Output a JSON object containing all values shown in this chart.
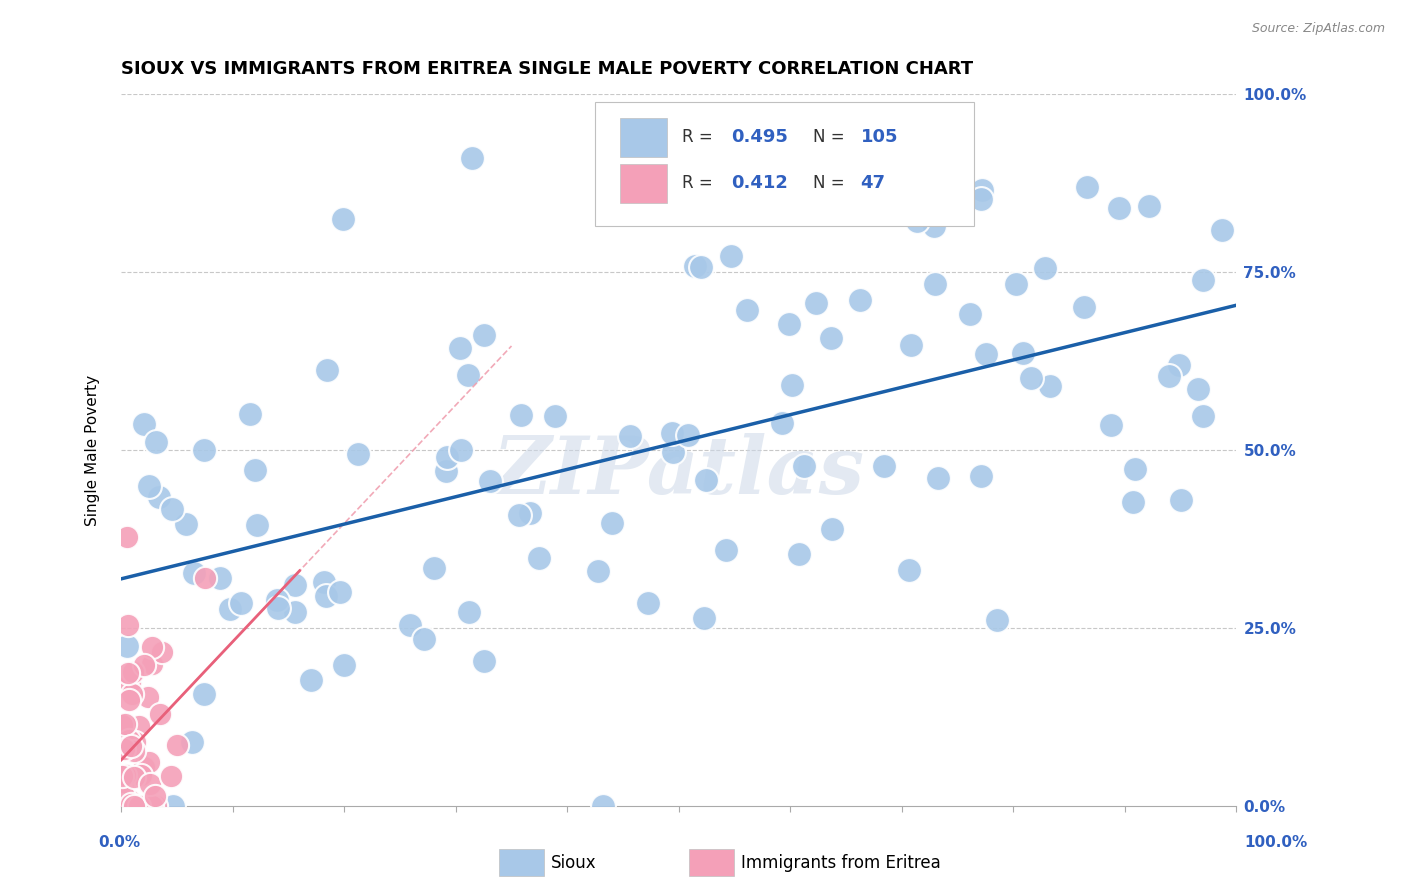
{
  "title": "SIOUX VS IMMIGRANTS FROM ERITREA SINGLE MALE POVERTY CORRELATION CHART",
  "source": "Source: ZipAtlas.com",
  "ylabel": "Single Male Poverty",
  "legend_label1": "Sioux",
  "legend_label2": "Immigrants from Eritrea",
  "R1": 0.495,
  "N1": 105,
  "R2": 0.412,
  "N2": 47,
  "sioux_color": "#a8c8e8",
  "eritrea_color": "#f4a0b8",
  "sioux_line_color": "#1a5fa8",
  "eritrea_line_color": "#e8607a",
  "eritrea_dash_color": "#f0a0b0",
  "watermark": "ZIPatlas"
}
